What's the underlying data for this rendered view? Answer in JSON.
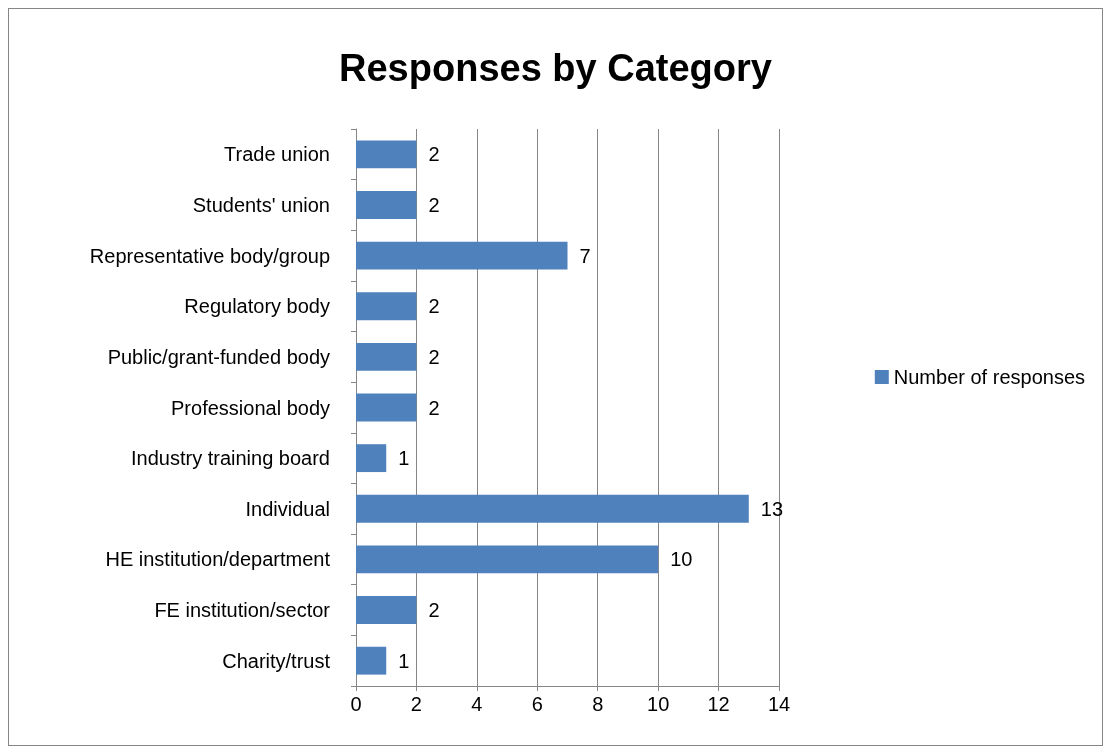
{
  "chart_data": {
    "type": "bar",
    "title": "Responses by Category",
    "orientation": "horizontal",
    "categories": [
      "Trade union",
      "Students' union",
      "Representative body/group",
      "Regulatory body",
      "Public/grant-funded body",
      "Professional body",
      "Industry training board",
      "Individual",
      "HE institution/department",
      "FE institution/sector",
      "Charity/trust"
    ],
    "series": [
      {
        "name": "Number of responses",
        "color": "#4f81bd",
        "values": [
          2,
          2,
          7,
          2,
          2,
          2,
          1,
          13,
          10,
          2,
          1
        ]
      }
    ],
    "xlim": [
      0,
      14
    ],
    "xticks": [
      0,
      2,
      4,
      6,
      8,
      10,
      12,
      14
    ],
    "grid": "x",
    "legend": "right",
    "data_labels": true
  }
}
